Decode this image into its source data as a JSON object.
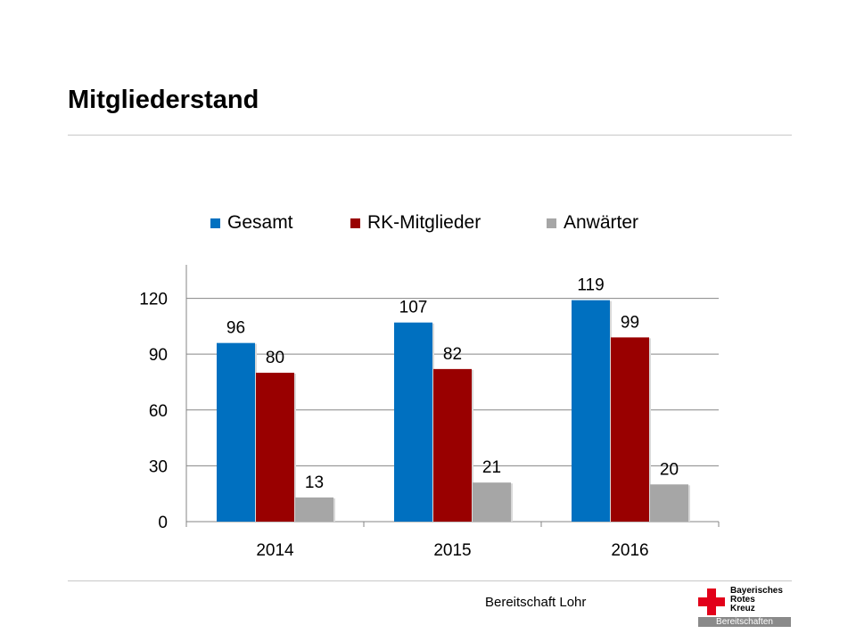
{
  "slide": {
    "title": "Mitgliederstand",
    "footer": "Bereitschaft Lohr"
  },
  "logo": {
    "lines": [
      "Bayerisches",
      "Rotes",
      "Kreuz"
    ],
    "bar_text": "Bereitschaften",
    "color": "#e2001a"
  },
  "chart_data": {
    "type": "bar",
    "categories": [
      "2014",
      "2015",
      "2016"
    ],
    "series": [
      {
        "name": "Gesamt",
        "values": [
          96,
          107,
          119
        ],
        "color": "#0070c0"
      },
      {
        "name": "RK-Mitglieder",
        "values": [
          80,
          82,
          99
        ],
        "color": "#990000"
      },
      {
        "name": "Anwärter",
        "values": [
          13,
          21,
          20
        ],
        "color": "#a6a6a6"
      }
    ],
    "yticks": [
      0,
      30,
      60,
      90,
      120
    ],
    "ylim": [
      0,
      138
    ],
    "grid": true,
    "legend_position": "top"
  }
}
